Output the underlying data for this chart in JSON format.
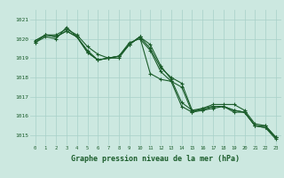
{
  "title": "Graphe pression niveau de la mer (hPa)",
  "background_color": "#cce8e0",
  "grid_color": "#a8d0c8",
  "line_color": "#1a5c2a",
  "xlim": [
    -0.5,
    23.5
  ],
  "ylim": [
    1014.5,
    1021.5
  ],
  "yticks": [
    1015,
    1016,
    1017,
    1018,
    1019,
    1020,
    1021
  ],
  "xticks": [
    0,
    1,
    2,
    3,
    4,
    5,
    6,
    7,
    8,
    9,
    10,
    11,
    12,
    13,
    14,
    15,
    16,
    17,
    18,
    19,
    20,
    21,
    22,
    23
  ],
  "series": [
    [
      1019.8,
      1020.2,
      1020.2,
      1020.5,
      1020.2,
      1019.6,
      1019.2,
      1019.0,
      1019.0,
      1019.7,
      1020.1,
      1019.5,
      1018.5,
      1018.0,
      1017.7,
      1016.3,
      1016.3,
      1016.4,
      1016.5,
      1016.2,
      1016.2,
      1015.5,
      1015.4,
      1014.8
    ],
    [
      1019.8,
      1020.1,
      1020.0,
      1020.6,
      1020.1,
      1019.4,
      1018.9,
      1019.0,
      1019.1,
      1019.8,
      1020.0,
      1019.4,
      1018.3,
      1017.8,
      1017.5,
      1016.2,
      1016.3,
      1016.5,
      1016.5,
      1016.3,
      1016.2,
      1015.5,
      1015.5,
      1014.9
    ],
    [
      1019.9,
      1020.2,
      1020.1,
      1020.4,
      1020.1,
      1019.3,
      1018.9,
      1019.0,
      1019.1,
      1019.7,
      1020.1,
      1019.7,
      1018.6,
      1017.9,
      1016.7,
      1016.3,
      1016.4,
      1016.6,
      1016.6,
      1016.6,
      1016.3,
      1015.6,
      1015.5,
      1014.9
    ],
    [
      1019.9,
      1020.2,
      1020.1,
      1020.4,
      1020.1,
      1019.3,
      1018.9,
      1019.0,
      1019.1,
      1019.7,
      1020.1,
      1018.2,
      1017.9,
      1017.8,
      1016.5,
      1016.2,
      1016.4,
      1016.5,
      1016.5,
      1016.3,
      1016.2,
      1015.5,
      1015.4,
      1014.9
    ]
  ]
}
